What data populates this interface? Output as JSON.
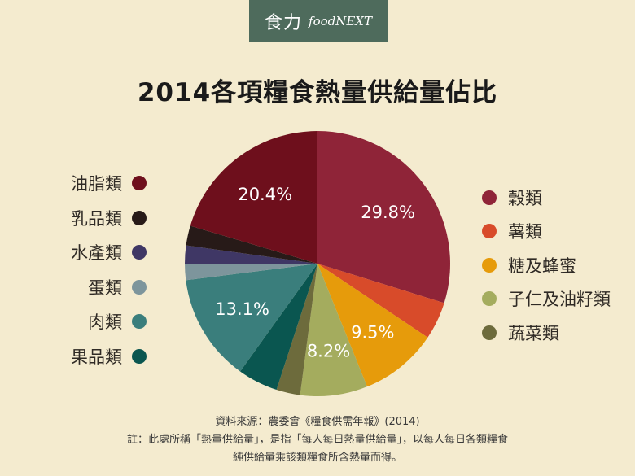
{
  "brand": {
    "name_cn": "食力",
    "name_en": "foodNEXT"
  },
  "chart_data": {
    "type": "pie",
    "title": "2014各項糧食熱量供給量佔比",
    "unit": "%",
    "start_angle_deg": 0,
    "direction": "clockwise",
    "slices": [
      {
        "name": "穀類",
        "value": 29.8,
        "color": "#8f2438",
        "label": "29.8%"
      },
      {
        "name": "薯類",
        "value": 4.6,
        "color": "#d84b2a",
        "label": ""
      },
      {
        "name": "糖及蜂蜜",
        "value": 9.5,
        "color": "#e69b0b",
        "label": "9.5%"
      },
      {
        "name": "子仁及油籽類",
        "value": 8.2,
        "color": "#a4ac5e",
        "label": "8.2%"
      },
      {
        "name": "蔬菜類",
        "value": 2.9,
        "color": "#6d6b3c",
        "label": ""
      },
      {
        "name": "果品類",
        "value": 4.9,
        "color": "#0a5650",
        "label": ""
      },
      {
        "name": "肉類",
        "value": 13.1,
        "color": "#3a7e7c",
        "label": "13.1%"
      },
      {
        "name": "蛋類",
        "value": 2.0,
        "color": "#7d959c",
        "label": ""
      },
      {
        "name": "水產類",
        "value": 2.2,
        "color": "#3f3765",
        "label": ""
      },
      {
        "name": "乳品類",
        "value": 2.4,
        "color": "#271a18",
        "label": ""
      },
      {
        "name": "油脂類",
        "value": 20.4,
        "color": "#6e0f1c",
        "label": "20.4%"
      }
    ],
    "legend_left": [
      "油脂類",
      "乳品類",
      "水產類",
      "蛋類",
      "肉類",
      "果品類"
    ],
    "legend_right": [
      "穀類",
      "薯類",
      "糖及蜂蜜",
      "子仁及油籽類",
      "蔬菜類"
    ]
  },
  "footer": {
    "source": "資料來源：農委會《糧食供需年報》(2014)",
    "note_line1": "註：此處所稱「熱量供給量」，是指「每人每日熱量供給量」，以每人每日各類糧食",
    "note_line2": "純供給量乘該類糧食所含熱量而得。"
  }
}
